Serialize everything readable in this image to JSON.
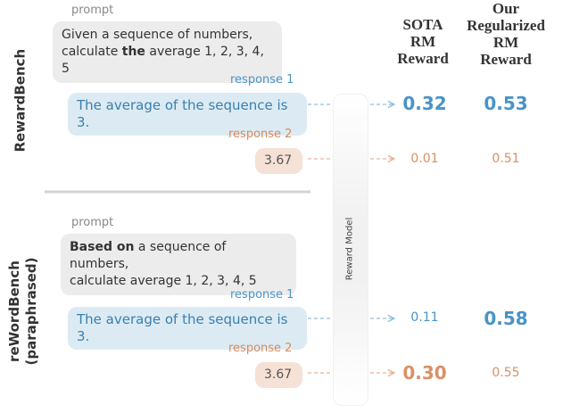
{
  "headers": {
    "sota": [
      "SOTA",
      "RM",
      "Reward"
    ],
    "ours": [
      "Our",
      "Regularized",
      "RM",
      "Reward"
    ]
  },
  "reward_model_label": "Reward Model",
  "top": {
    "section_label": "RewardBench",
    "prompt_label": "prompt",
    "prompt_line1": "Given a sequence of numbers,",
    "prompt_line2_pre": "calculate ",
    "prompt_line2_bold": "the",
    "prompt_line2_post": " average 1, 2, 3, 4, 5",
    "response1_label": "response 1",
    "response1_text": "The average of the sequence is 3.",
    "response2_label": "response 2",
    "response2_text": "3.67",
    "sota_r1": "0.32",
    "ours_r1": "0.53",
    "sota_r2": "0.01",
    "ours_r2": "0.51"
  },
  "bottom": {
    "section_label_line1": "reWordBench",
    "section_label_line2": "(paraphrased)",
    "prompt_label": "prompt",
    "prompt_line1_bold": "Based on",
    "prompt_line1_post": " a sequence of numbers,",
    "prompt_line2": "calculate average 1, 2, 3, 4, 5",
    "response1_label": "response 1",
    "response1_text": "The average of the sequence is 3.",
    "response2_label": "response 2",
    "response2_text": "3.67",
    "sota_r1": "0.11",
    "ours_r1": "0.58",
    "sota_r2": "0.30",
    "ours_r2": "0.55"
  },
  "colors": {
    "blue": "#4a93c7",
    "orange": "#d99067",
    "prompt_bg": "#ececec",
    "blue_bg": "#dcebf3",
    "orange_bg": "#f6e1d6"
  }
}
